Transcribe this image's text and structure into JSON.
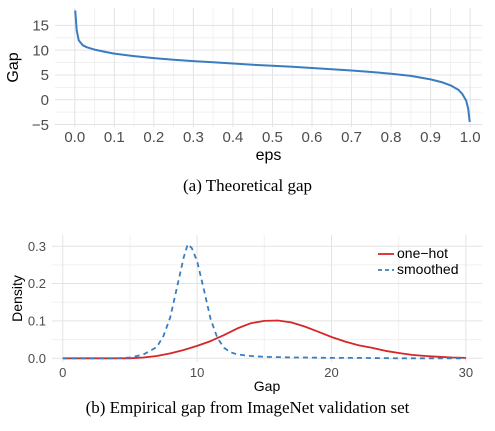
{
  "chart_data": [
    {
      "type": "line",
      "caption": "(a) Theoretical gap",
      "xlabel": "eps",
      "ylabel": "Gap",
      "xlim": [
        -0.05,
        1.03
      ],
      "ylim": [
        -5.5,
        18.5
      ],
      "xticks": [
        0.0,
        0.1,
        0.2,
        0.3,
        0.4,
        0.5,
        0.6,
        0.7,
        0.8,
        0.9,
        1.0
      ],
      "xtick_labels": [
        "0.0",
        "0.1",
        "0.2",
        "0.3",
        "0.4",
        "0.5",
        "0.6",
        "0.7",
        "0.8",
        "0.9",
        "1.0"
      ],
      "yticks": [
        -5,
        0,
        5,
        10,
        15
      ],
      "ytick_labels": [
        "−5",
        "0",
        "5",
        "10",
        "15"
      ],
      "grid": true,
      "series": [
        {
          "color": "#3a7dbf",
          "dash": "solid",
          "x": [
            0.001,
            0.005,
            0.01,
            0.02,
            0.03,
            0.05,
            0.08,
            0.1,
            0.15,
            0.2,
            0.25,
            0.3,
            0.35,
            0.4,
            0.45,
            0.5,
            0.55,
            0.6,
            0.65,
            0.7,
            0.75,
            0.8,
            0.85,
            0.9,
            0.93,
            0.95,
            0.97,
            0.98,
            0.99,
            0.995,
            0.999
          ],
          "y": [
            18.0,
            14.0,
            12.0,
            11.0,
            10.6,
            10.1,
            9.6,
            9.3,
            8.8,
            8.4,
            8.05,
            7.8,
            7.55,
            7.3,
            7.05,
            6.85,
            6.65,
            6.4,
            6.15,
            5.9,
            5.6,
            5.25,
            4.8,
            4.1,
            3.5,
            2.9,
            2.0,
            1.2,
            -0.2,
            -1.8,
            -4.5
          ]
        }
      ]
    },
    {
      "type": "line",
      "caption": "(b) Empirical gap from ImageNet validation set",
      "xlabel": "Gap",
      "ylabel": "Density",
      "xlim": [
        -0.8,
        31.2
      ],
      "ylim": [
        -0.01,
        0.33
      ],
      "xticks": [
        0,
        10,
        20,
        30
      ],
      "xtick_labels": [
        "0",
        "10",
        "20",
        "30"
      ],
      "yticks": [
        0.0,
        0.1,
        0.2,
        0.3
      ],
      "ytick_labels": [
        "0.0",
        "0.1",
        "0.2",
        "0.3"
      ],
      "grid": true,
      "legend": "top-right",
      "series": [
        {
          "name": "one−hot",
          "color": "#d62728",
          "dash": "solid",
          "x": [
            0,
            5,
            6,
            7,
            8,
            9,
            10,
            11,
            12,
            13,
            14,
            15,
            16,
            17,
            18,
            19,
            20,
            21,
            22,
            23,
            24,
            25,
            26,
            27,
            28,
            29,
            30
          ],
          "y": [
            0.0,
            0.0,
            0.002,
            0.006,
            0.013,
            0.022,
            0.033,
            0.046,
            0.062,
            0.08,
            0.094,
            0.1,
            0.101,
            0.096,
            0.085,
            0.071,
            0.057,
            0.045,
            0.035,
            0.028,
            0.02,
            0.014,
            0.009,
            0.006,
            0.004,
            0.002,
            0.001
          ]
        },
        {
          "name": "smoothed",
          "color": "#3a7dbf",
          "dash": "dashed",
          "x": [
            0,
            4,
            5,
            6,
            7,
            7.5,
            8,
            8.5,
            9,
            9.3,
            9.6,
            10,
            10.5,
            11,
            11.5,
            12,
            12.5,
            13,
            14,
            15,
            16,
            17,
            18,
            20,
            22,
            25,
            30
          ],
          "y": [
            0.0,
            0.0,
            0.002,
            0.01,
            0.03,
            0.06,
            0.11,
            0.19,
            0.27,
            0.305,
            0.295,
            0.26,
            0.185,
            0.105,
            0.055,
            0.028,
            0.016,
            0.01,
            0.006,
            0.004,
            0.003,
            0.002,
            0.002,
            0.001,
            0.001,
            0.0,
            0.0
          ]
        }
      ]
    }
  ]
}
